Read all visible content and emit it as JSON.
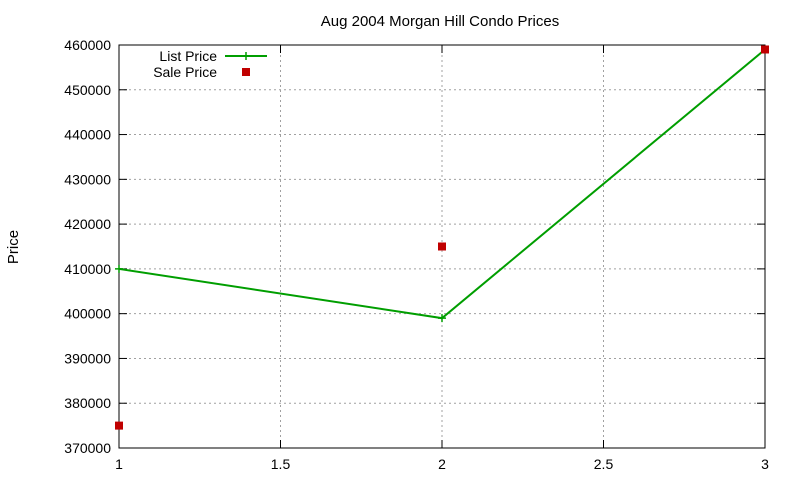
{
  "chart_data": {
    "type": "line",
    "title": "Aug 2004 Morgan Hill Condo Prices",
    "xlabel": "",
    "ylabel": "Price",
    "xlim": [
      1,
      3
    ],
    "ylim": [
      370000,
      460000
    ],
    "xticks": [
      1,
      1.5,
      2,
      2.5,
      3
    ],
    "xtick_labels": [
      "1",
      "1.5",
      "2",
      "2.5",
      "3"
    ],
    "yticks": [
      370000,
      380000,
      390000,
      400000,
      410000,
      420000,
      430000,
      440000,
      450000,
      460000
    ],
    "ytick_labels": [
      "370000",
      "380000",
      "390000",
      "400000",
      "410000",
      "420000",
      "430000",
      "440000",
      "450000",
      "460000"
    ],
    "grid": true,
    "legend_position": "top-left",
    "series": [
      {
        "name": "List Price",
        "style": "linespoints",
        "marker": "plus",
        "color": "#009e00",
        "x": [
          1,
          2,
          3
        ],
        "y": [
          410000,
          399000,
          459000
        ]
      },
      {
        "name": "Sale Price",
        "style": "points",
        "marker": "square",
        "color": "#c00000",
        "x": [
          1,
          2,
          3
        ],
        "y": [
          375000,
          415000,
          459000
        ]
      }
    ]
  }
}
